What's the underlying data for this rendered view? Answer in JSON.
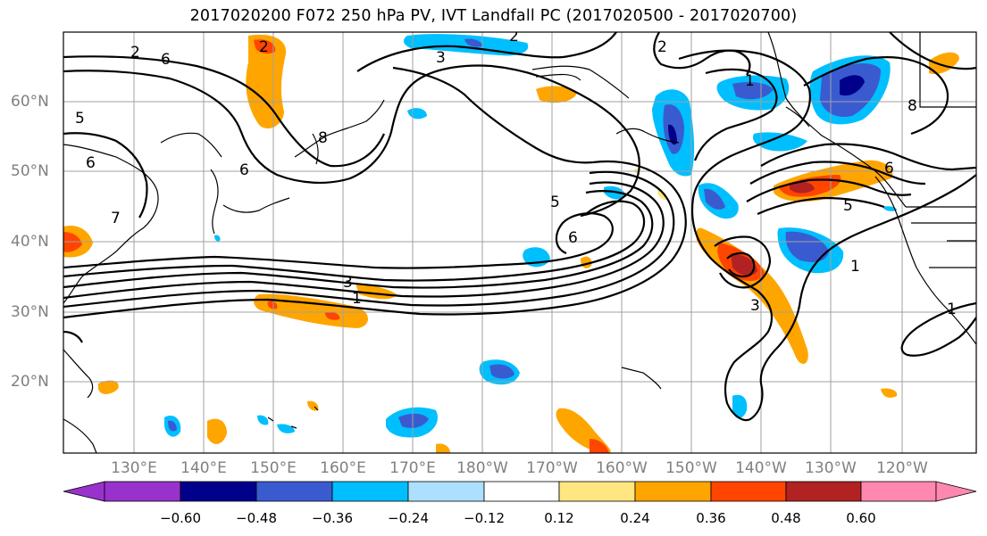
{
  "title": "2017020200 F072 250 hPa PV, IVT Landfall PC (2017020500 - 2017020700)",
  "map": {
    "lat_labels": [
      "60°N",
      "50°N",
      "40°N",
      "30°N",
      "20°N"
    ],
    "lon_labels": [
      "130°E",
      "140°E",
      "150°E",
      "160°E",
      "170°E",
      "180°W",
      "170°W",
      "160°W",
      "150°W",
      "140°W",
      "130°W",
      "120°W"
    ],
    "contour_labels": [
      "2",
      "5",
      "6",
      "7",
      "8",
      "6",
      "5",
      "6",
      "3",
      "1",
      "2",
      "3",
      "1",
      "5",
      "6",
      "3",
      "1",
      "1",
      "8",
      "6",
      "2",
      "2"
    ]
  },
  "colorbar": {
    "ticks": [
      "−0.60",
      "−0.48",
      "−0.36",
      "−0.24",
      "−0.12",
      "0.12",
      "0.24",
      "0.36",
      "0.48",
      "0.60"
    ],
    "colors": [
      "#9932CC",
      "#00008B",
      "#3A5BD0",
      "#00BFFF",
      "#ADDFFF",
      "#FFFFFF",
      "#FFE680",
      "#FFA500",
      "#FF4500",
      "#B22222",
      "#FF88B0"
    ]
  }
}
